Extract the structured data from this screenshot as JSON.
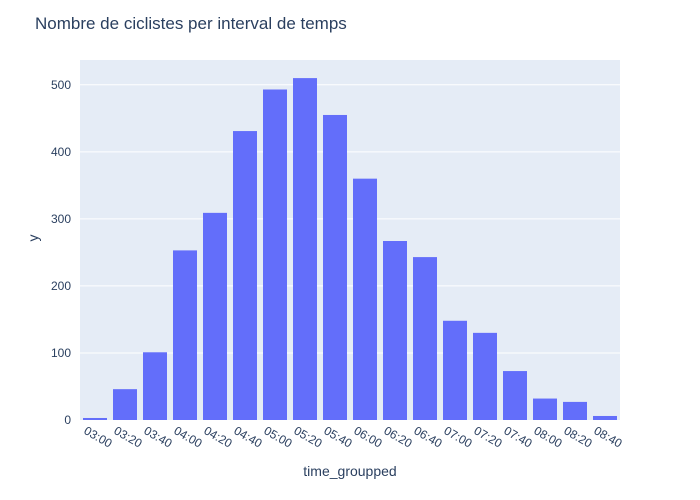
{
  "chart_data": {
    "type": "bar",
    "title": "Nombre de ciclistes per interval de temps",
    "xlabel": "time_groupped",
    "ylabel": "y",
    "categories": [
      "03:00",
      "03:20",
      "03:40",
      "04:00",
      "04:20",
      "04:40",
      "05:00",
      "05:20",
      "05:40",
      "06:00",
      "06:20",
      "06:40",
      "07:00",
      "07:20",
      "07:40",
      "08:00",
      "08:20",
      "08:40"
    ],
    "values": [
      3,
      46,
      101,
      253,
      309,
      431,
      493,
      510,
      455,
      360,
      267,
      243,
      148,
      130,
      73,
      32,
      27,
      6
    ],
    "ylim": [
      0,
      537
    ],
    "yticks": [
      0,
      100,
      200,
      300,
      400,
      500
    ],
    "grid": true,
    "bar_color": "#636efa",
    "plot_background": "#e5ecf6"
  }
}
